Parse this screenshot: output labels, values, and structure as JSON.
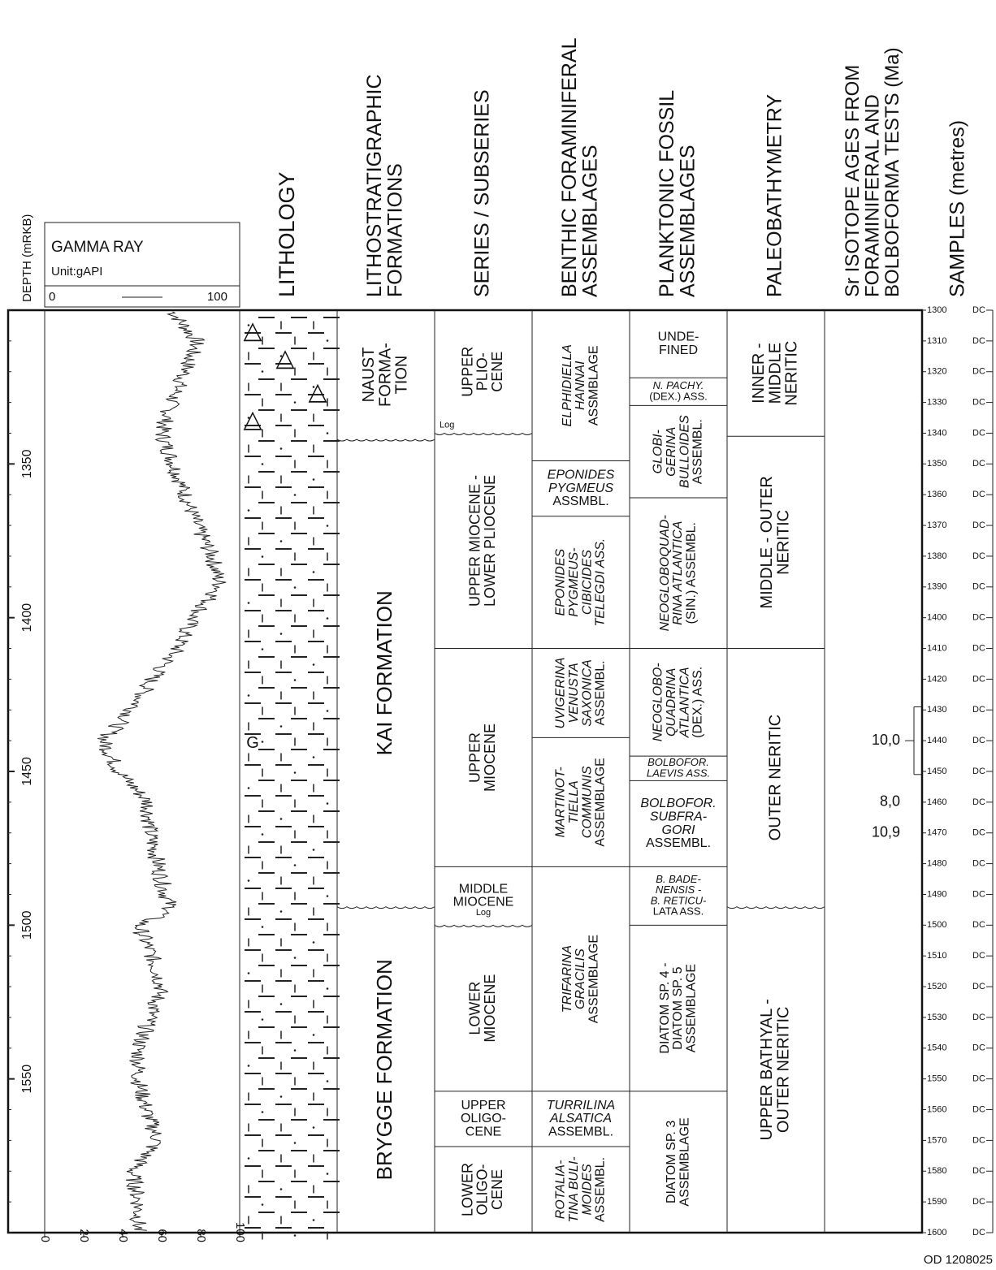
{
  "headers": {
    "depth": "DEPTH (mRKB)",
    "gamma_title": "GAMMA RAY",
    "gamma_unit": "Unit:gAPI",
    "gamma_min": "0",
    "gamma_max": "100",
    "lithology": "LITHOLOGY",
    "litho_formations": [
      "LITHOSTRATIGRAPHIC",
      "FORMATIONS"
    ],
    "series": [
      "SERIES / SUBSERIES"
    ],
    "benthic": [
      "BENTHIC FORAMINIFERAL",
      "ASSEMBLAGES"
    ],
    "planktonic": [
      "PLANKTONIC FOSSIL",
      "ASSEMBLAGES"
    ],
    "paleobathymetry": [
      "PALEOBATHYMETRY"
    ],
    "sr_isotope": [
      "Sr ISOTOPE AGES FROM",
      "FORAMINIFERAL AND",
      "BOLBOFORMA TESTS (Ma)"
    ],
    "samples": [
      "SAMPLES (metres)"
    ]
  },
  "depth_axis": {
    "min": 1300,
    "max": 1600,
    "major_ticks": [
      1350,
      1400,
      1450,
      1500,
      1550
    ],
    "minor_ticks": [
      1300,
      1310,
      1320,
      1330,
      1340,
      1350,
      1360,
      1370,
      1380,
      1390,
      1400,
      1410,
      1420,
      1430,
      1440,
      1450,
      1460,
      1470,
      1480,
      1490,
      1500,
      1510,
      1520,
      1530,
      1540,
      1550,
      1560,
      1570,
      1580,
      1590,
      1600
    ]
  },
  "gamma_axis": {
    "min": 0,
    "max": 100,
    "ticks": [
      "0",
      "20",
      "40",
      "60",
      "80",
      "100"
    ]
  },
  "gamma_ray_curve": {
    "depth": [
      1300,
      1310,
      1320,
      1330,
      1340,
      1350,
      1360,
      1370,
      1380,
      1390,
      1400,
      1410,
      1420,
      1430,
      1440,
      1450,
      1460,
      1470,
      1480,
      1490,
      1495,
      1500,
      1510,
      1520,
      1530,
      1540,
      1550,
      1560,
      1570,
      1580,
      1590,
      1600
    ],
    "value": [
      65,
      78,
      72,
      65,
      60,
      66,
      72,
      78,
      86,
      90,
      76,
      68,
      55,
      45,
      30,
      38,
      53,
      54,
      58,
      62,
      65,
      48,
      55,
      60,
      54,
      48,
      48,
      52,
      58,
      45,
      48,
      48
    ]
  },
  "lithology_symbols": [
    {
      "symbol": "△",
      "depth": 1307,
      "column": 0
    },
    {
      "symbol": "△",
      "depth": 1316,
      "column": 1
    },
    {
      "symbol": "△",
      "depth": 1327,
      "column": 2
    },
    {
      "symbol": "△",
      "depth": 1336,
      "column": 0
    },
    {
      "symbol": "G",
      "depth": 1441,
      "column": 0
    }
  ],
  "formations": [
    {
      "top": 1300,
      "bottom": 1342,
      "lines": [
        "NAUST",
        "FORMA-",
        "TION"
      ],
      "wavy_bottom": true
    },
    {
      "top": 1342,
      "bottom": 1494,
      "lines": [
        "KAI FORMATION"
      ],
      "wavy_bottom": true
    },
    {
      "top": 1494,
      "bottom": 1600,
      "lines": [
        "BRYGGE FORMATION"
      ]
    }
  ],
  "series": [
    {
      "top": 1300,
      "bottom": 1340,
      "lines": [
        "UPPER",
        "PLIO-",
        "CENE"
      ],
      "note": "Log",
      "wavy_bottom": true
    },
    {
      "top": 1340,
      "bottom": 1410,
      "lines": [
        "UPPER MIOCENE -",
        "LOWER PLIOCENE"
      ]
    },
    {
      "top": 1410,
      "bottom": 1481,
      "lines": [
        "UPPER",
        "MIOCENE"
      ]
    },
    {
      "top": 1481,
      "bottom": 1500,
      "lines": [
        "MIDDLE",
        "MIOCENE"
      ],
      "note": "Log",
      "horizontal": true,
      "wavy_bottom": true
    },
    {
      "top": 1500,
      "bottom": 1554,
      "lines": [
        "LOWER",
        "MIOCENE"
      ]
    },
    {
      "top": 1554,
      "bottom": 1572,
      "lines": [
        "UPPER",
        "OLIGO-",
        "CENE"
      ],
      "horizontal": true
    },
    {
      "top": 1572,
      "bottom": 1600,
      "lines": [
        "LOWER",
        "OLIGO-",
        "CENE"
      ]
    }
  ],
  "benthic": [
    {
      "top": 1300,
      "bottom": 1349,
      "lines": [
        "ELPHIDIELLA",
        "HANNAI",
        "ASSMBLAGE"
      ],
      "italic": [
        true,
        true,
        false
      ]
    },
    {
      "top": 1349,
      "bottom": 1367,
      "lines": [
        "EPONIDES",
        "PYGMEUS",
        "ASSMBL."
      ],
      "italic": [
        true,
        true,
        false
      ],
      "horizontal": true
    },
    {
      "top": 1367,
      "bottom": 1410,
      "lines": [
        "EPONIDES",
        "PYGMEUS-",
        "CIBICIDES",
        "TELEGDI ASS."
      ],
      "italic": [
        true,
        true,
        true,
        true
      ]
    },
    {
      "top": 1410,
      "bottom": 1439,
      "lines": [
        "UVIGERINA",
        "VENUSTA",
        "SAXONICA",
        "ASSEMBL."
      ],
      "italic": [
        true,
        true,
        true,
        false
      ]
    },
    {
      "top": 1439,
      "bottom": 1481,
      "lines": [
        "MARTINOT-",
        "TIELLA",
        "COMMUNIS",
        "ASSEMBLAGE"
      ],
      "italic": [
        true,
        true,
        true,
        false
      ]
    },
    {
      "top": 1481,
      "bottom": 1554,
      "lines": [
        "TRIFARINA",
        "GRACILIS",
        "ASSEMBLAGE"
      ],
      "italic": [
        true,
        true,
        false
      ]
    },
    {
      "top": 1554,
      "bottom": 1572,
      "lines": [
        "TURRILINA",
        "ALSATICA",
        "ASSEMBL."
      ],
      "italic": [
        true,
        true,
        false
      ],
      "horizontal": true
    },
    {
      "top": 1572,
      "bottom": 1600,
      "lines": [
        "ROTALIA-",
        "TINA BULI-",
        "MOIDES",
        "ASSEMBL."
      ],
      "italic": [
        true,
        true,
        true,
        false
      ]
    }
  ],
  "planktonic": [
    {
      "top": 1300,
      "bottom": 1322,
      "lines": [
        "UNDE-",
        "FINED"
      ],
      "horizontal": true
    },
    {
      "top": 1322,
      "bottom": 1331,
      "lines": [
        "N. PACHY.",
        "(DEX.) ASS."
      ],
      "italic": [
        true,
        false
      ],
      "horizontal": true,
      "small": true
    },
    {
      "top": 1331,
      "bottom": 1361,
      "lines": [
        "GLOBI-",
        "GERINA",
        "BULLOIDES",
        "ASSEMBL."
      ],
      "italic": [
        true,
        true,
        true,
        false
      ]
    },
    {
      "top": 1361,
      "bottom": 1410,
      "lines": [
        "NEOGLOBOQUAD-",
        "RINA ATLANTICA",
        "(SIN.) ASSEMBL."
      ],
      "italic": [
        true,
        true,
        false
      ]
    },
    {
      "top": 1410,
      "bottom": 1445,
      "lines": [
        "NEOGLOBO-",
        "QUADRINA",
        "ATLANTICA",
        "(DEX.) ASS."
      ],
      "italic": [
        true,
        true,
        true,
        false
      ]
    },
    {
      "top": 1445,
      "bottom": 1453,
      "lines": [
        "BOLBOFOR.",
        "LAEVIS ASS."
      ],
      "italic": [
        true,
        true
      ],
      "horizontal": true,
      "small": true
    },
    {
      "top": 1453,
      "bottom": 1481,
      "lines": [
        "BOLBOFOR.",
        "SUBFRA-",
        "GORI",
        "ASSEMBL."
      ],
      "italic": [
        true,
        true,
        true,
        false
      ],
      "horizontal": true
    },
    {
      "top": 1481,
      "bottom": 1500,
      "lines": [
        "B. BADE-",
        "NENSIS -",
        "B. RETICU-",
        "LATA ASS."
      ],
      "italic": [
        true,
        true,
        true,
        false
      ],
      "horizontal": true,
      "small": true
    },
    {
      "top": 1500,
      "bottom": 1554,
      "lines": [
        "DIATOM SP. 4 -",
        "DIATOM SP. 5",
        "ASSEMBLAGE"
      ]
    },
    {
      "top": 1554,
      "bottom": 1600,
      "lines": [
        "DIATOM SP. 3",
        "ASSEMBLAGE"
      ]
    }
  ],
  "paleobathymetry": [
    {
      "top": 1300,
      "bottom": 1341,
      "lines": [
        "INNER -",
        "MIDDLE",
        "NERITIC"
      ]
    },
    {
      "top": 1341,
      "bottom": 1410,
      "lines": [
        "MIDDLE - OUTER",
        "NERITIC"
      ]
    },
    {
      "top": 1410,
      "bottom": 1494,
      "lines": [
        "OUTER NERITIC"
      ],
      "wavy_bottom": true
    },
    {
      "top": 1494,
      "bottom": 1600,
      "lines": [
        "UPPER BATHYAL -",
        "OUTER NERITIC"
      ]
    }
  ],
  "sr_isotope_ages": [
    {
      "label": "10,0",
      "depth": 1440,
      "range_top": 1429,
      "range_bottom": 1451
    },
    {
      "label": "8,0",
      "depth": 1460
    },
    {
      "label": "10,9",
      "depth": 1470
    }
  ],
  "sample_label": "DC",
  "figure_id": "OD 1208025"
}
